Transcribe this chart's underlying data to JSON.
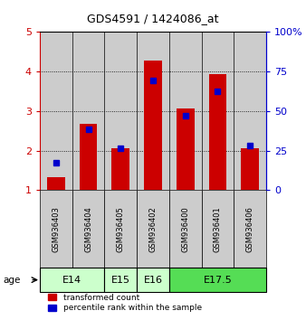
{
  "title": "GDS4591 / 1424086_at",
  "samples": [
    "GSM936403",
    "GSM936404",
    "GSM936405",
    "GSM936402",
    "GSM936400",
    "GSM936401",
    "GSM936406"
  ],
  "red_values": [
    1.32,
    2.68,
    2.05,
    4.28,
    3.07,
    3.93,
    2.05
  ],
  "blue_values": [
    1.7,
    2.53,
    2.07,
    3.77,
    2.88,
    3.5,
    2.12
  ],
  "ylim": [
    1,
    5
  ],
  "yticks": [
    1,
    2,
    3,
    4,
    5
  ],
  "y2ticks": [
    0,
    25,
    50,
    75,
    100
  ],
  "age_groups": [
    {
      "label": "E14",
      "start": 0,
      "end": 2,
      "color": "#ccffcc"
    },
    {
      "label": "E15",
      "start": 2,
      "end": 3,
      "color": "#ccffcc"
    },
    {
      "label": "E16",
      "start": 3,
      "end": 4,
      "color": "#ccffcc"
    },
    {
      "label": "E17.5",
      "start": 4,
      "end": 7,
      "color": "#55dd55"
    }
  ],
  "red_color": "#cc0000",
  "blue_color": "#0000cc",
  "bar_bg_color": "#cccccc",
  "label_red": "transformed count",
  "label_blue": "percentile rank within the sample",
  "left_axis_color": "#cc0000",
  "right_axis_color": "#0000cc"
}
